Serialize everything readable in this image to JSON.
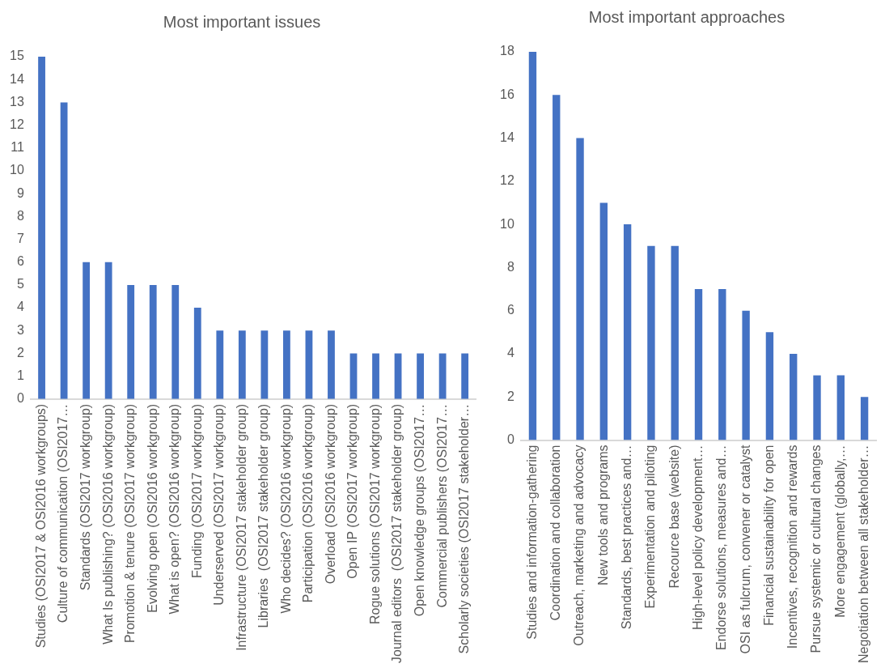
{
  "chart_data": [
    {
      "type": "bar",
      "title": "Most important issues",
      "categories": [
        "Studies (OSI2017 & OSI2016 workgroups)",
        "Culture of communication (OSI2017…",
        "Standards (OSI2017 workgroup)",
        "What Is publishing? (OSI2016 workgroup)",
        "Promotion & tenure (OSI2017 workgroup)",
        "Evolving open (OSI2016 workgroup)",
        "What is open? (OSI2016 workgroup)",
        "Funding (OSI2017 workgroup)",
        "Underserved (OSI2017 workgroup)",
        "Infrastructure (OSI2017 stakeholder group)",
        "Libraries  (OSI2017 stakeholder group)",
        "Who decides? (OSI2016 workgroup)",
        "Participation (OSI2016 workgroup)",
        "Overload (OSI2016 workgroup)",
        "Open IP (OSI2017 workgroup)",
        "Rogue solutions (OSI2017 workgroup)",
        "Journal editors  (OSI2017 stakeholder group)",
        "Open knowledge groups (OSI2017…",
        "Commercial publishers (OSI2017…",
        "Scholarly societies (OSI2017 stakeholder…"
      ],
      "values": [
        15,
        13,
        6,
        6,
        5,
        5,
        5,
        4,
        3,
        3,
        3,
        3,
        3,
        3,
        2,
        2,
        2,
        2,
        2,
        2
      ],
      "color": "#4472c4",
      "ylim": [
        0,
        15
      ],
      "yticks": [
        0,
        1,
        2,
        3,
        4,
        5,
        6,
        7,
        8,
        9,
        10,
        11,
        12,
        13,
        14,
        15
      ]
    },
    {
      "type": "bar",
      "title": "Most important approaches",
      "categories": [
        "Studies and information-gathering",
        "Coordination and collaboration",
        "Outreach, marketing and advocacy",
        "New tools and programs",
        "Standards, best practices and…",
        "Experimentation and piloting",
        "Recource base (website)",
        "High-level policy development…",
        "Endorse solutions, measures and…",
        "OSI as fulcrum, convener or catalyst",
        "Financial sustainability for open",
        "Incentives, recognition and rewards",
        "Pursue systemic or cultural changes",
        "More engagement (globally,…",
        "Negotiation between all stakeholder…"
      ],
      "values": [
        18,
        16,
        14,
        11,
        10,
        9,
        9,
        7,
        7,
        6,
        5,
        4,
        3,
        3,
        2
      ],
      "color": "#4472c4",
      "ylim": [
        0,
        18
      ],
      "yticks": [
        0,
        2,
        4,
        6,
        8,
        10,
        12,
        14,
        16,
        18
      ]
    }
  ]
}
